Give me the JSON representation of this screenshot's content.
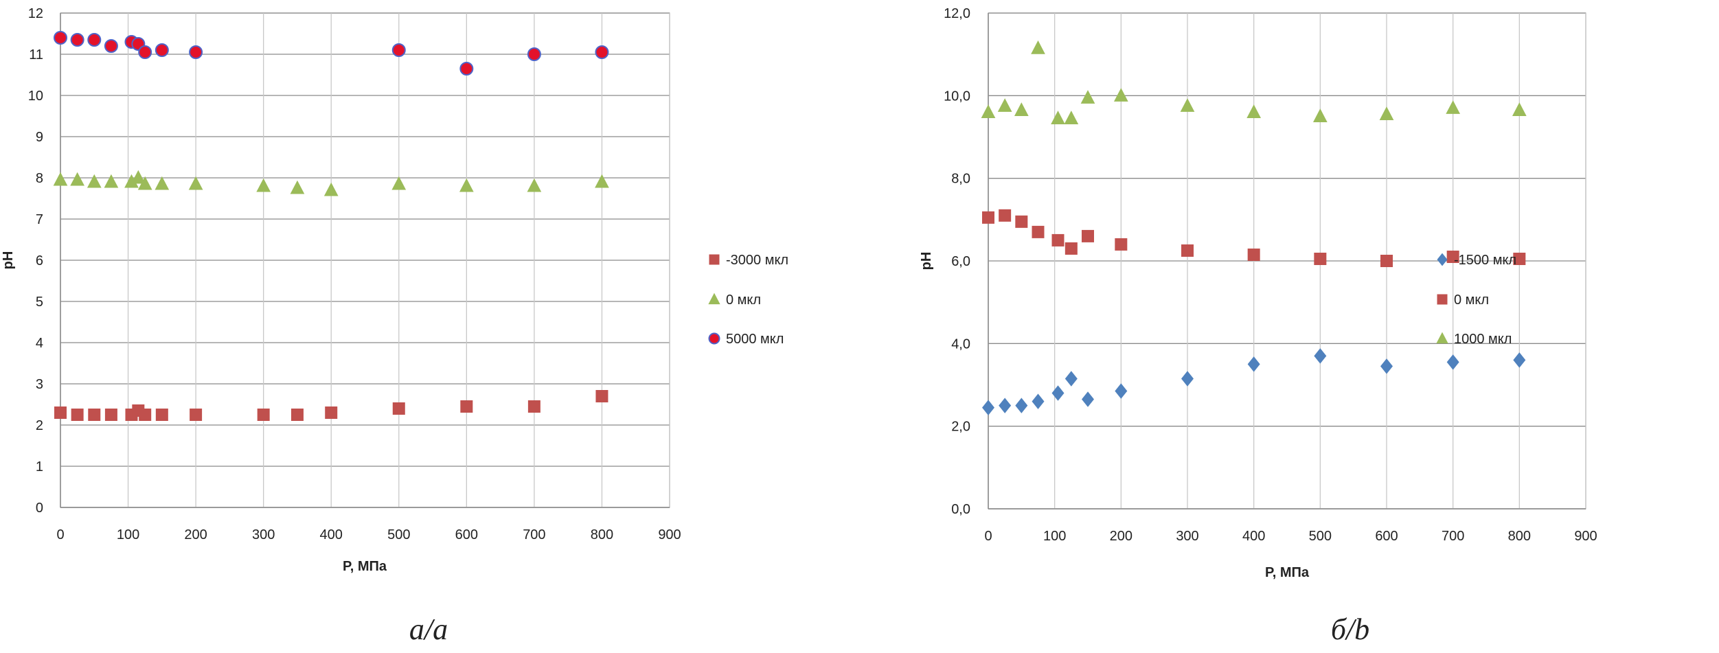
{
  "chart_data": [
    {
      "type": "scatter",
      "caption": "а/a",
      "xlabel": "P, МПа",
      "ylabel": "pH",
      "xlim": [
        0,
        900
      ],
      "ylim": [
        0,
        12
      ],
      "xticks": [
        "0",
        "100",
        "200",
        "300",
        "400",
        "500",
        "600",
        "700",
        "800",
        "900"
      ],
      "yticks": [
        "0",
        "1",
        "2",
        "3",
        "4",
        "5",
        "6",
        "7",
        "8",
        "9",
        "10",
        "11",
        "12"
      ],
      "grid": "horizontal and vertical",
      "legend_position": "right",
      "series": [
        {
          "name": "-3000 мкл",
          "marker": "square",
          "color": "#c0504d",
          "x": [
            0,
            25,
            50,
            75,
            105,
            115,
            125,
            150,
            200,
            300,
            350,
            400,
            500,
            600,
            700,
            800
          ],
          "y": [
            2.3,
            2.25,
            2.25,
            2.25,
            2.25,
            2.35,
            2.25,
            2.25,
            2.25,
            2.25,
            2.25,
            2.3,
            2.4,
            2.45,
            2.45,
            2.7
          ]
        },
        {
          "name": "0 мкл",
          "marker": "triangle",
          "color": "#9bbb59",
          "x": [
            0,
            25,
            50,
            75,
            105,
            115,
            125,
            150,
            200,
            300,
            350,
            400,
            500,
            600,
            700,
            800
          ],
          "y": [
            7.95,
            7.95,
            7.9,
            7.9,
            7.9,
            8.0,
            7.85,
            7.85,
            7.85,
            7.8,
            7.75,
            7.7,
            7.85,
            7.8,
            7.8,
            7.9
          ]
        },
        {
          "name": "5000 мкл",
          "marker": "circle",
          "color": "#e3122a",
          "edge_color": "#4f63c8",
          "x": [
            0,
            25,
            50,
            75,
            105,
            115,
            125,
            150,
            200,
            500,
            600,
            700,
            800
          ],
          "y": [
            11.4,
            11.35,
            11.35,
            11.2,
            11.3,
            11.25,
            11.05,
            11.1,
            11.05,
            11.1,
            10.65,
            11.0,
            11.05
          ]
        }
      ]
    },
    {
      "type": "scatter",
      "caption": "б/b",
      "xlabel": "P, МПа",
      "ylabel": "pH",
      "xlim": [
        0,
        900
      ],
      "ylim": [
        0,
        12
      ],
      "xticks": [
        "0",
        "100",
        "200",
        "300",
        "400",
        "500",
        "600",
        "700",
        "800",
        "900"
      ],
      "yticks": [
        "0,0",
        "2,0",
        "4,0",
        "6,0",
        "8,0",
        "10,0",
        "12,0"
      ],
      "grid": "horizontal and vertical",
      "legend_position": "right",
      "series": [
        {
          "name": "-1500 мкл",
          "marker": "diamond",
          "color": "#4f81bd",
          "x": [
            0,
            25,
            50,
            75,
            105,
            125,
            150,
            200,
            300,
            400,
            500,
            600,
            700,
            800
          ],
          "y": [
            2.45,
            2.5,
            2.5,
            2.6,
            2.8,
            3.15,
            2.65,
            2.85,
            3.15,
            3.5,
            3.7,
            3.45,
            3.55,
            3.6
          ]
        },
        {
          "name": "0 мкл",
          "marker": "square",
          "color": "#c0504d",
          "x": [
            0,
            25,
            50,
            75,
            105,
            125,
            150,
            200,
            300,
            400,
            500,
            600,
            700,
            800
          ],
          "y": [
            7.05,
            7.1,
            6.95,
            6.7,
            6.5,
            6.3,
            6.6,
            6.4,
            6.25,
            6.15,
            6.05,
            6.0,
            6.1,
            6.05
          ]
        },
        {
          "name": "1000 мкл",
          "marker": "triangle",
          "color": "#9bbb59",
          "x": [
            0,
            25,
            50,
            75,
            105,
            125,
            150,
            200,
            300,
            400,
            500,
            600,
            700,
            800
          ],
          "y": [
            9.6,
            9.75,
            9.65,
            11.15,
            9.45,
            9.45,
            9.95,
            10.0,
            9.75,
            9.6,
            9.5,
            9.55,
            9.7,
            9.65
          ]
        }
      ]
    }
  ]
}
